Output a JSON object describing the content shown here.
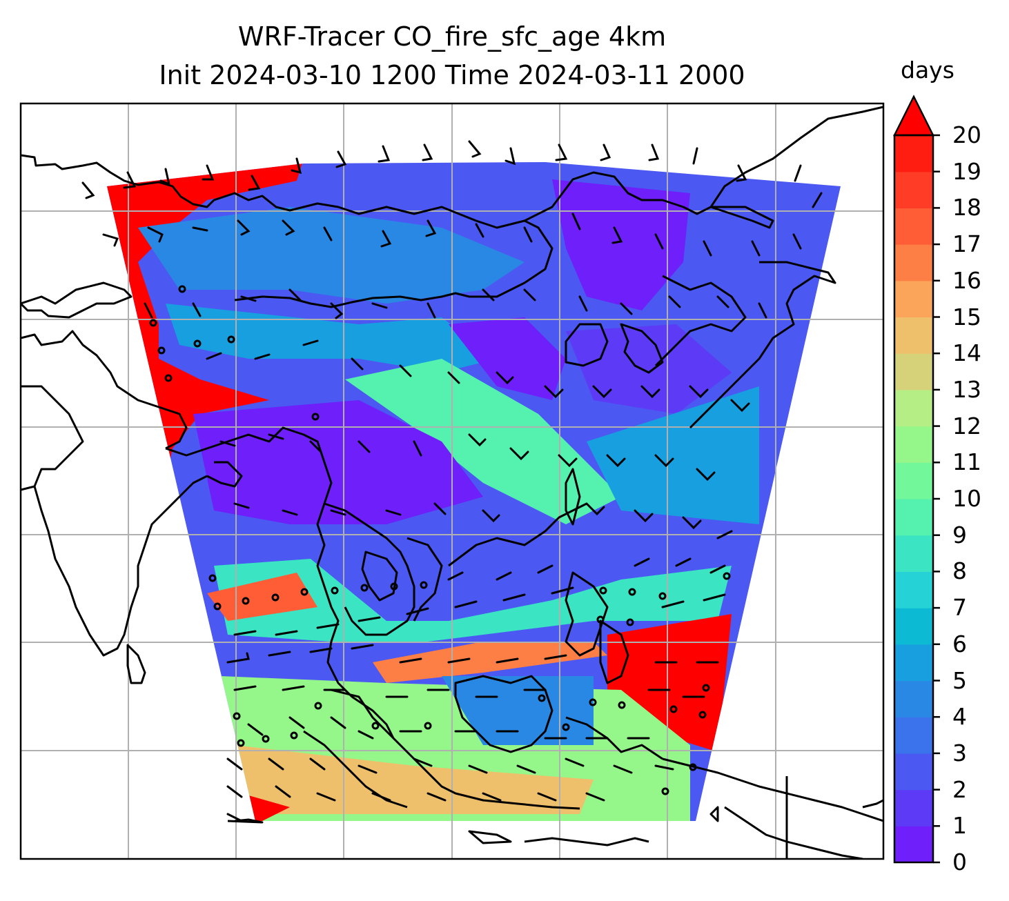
{
  "title": {
    "line1": "WRF-Tracer CO_fire_sfc_age 4km",
    "line2": "Init 2024-03-10 1200 Time 2024-03-11 2000"
  },
  "colorbar": {
    "label": "days",
    "min": 0,
    "max": 20,
    "extend": "max",
    "ticks": [
      "0",
      "1",
      "2",
      "3",
      "4",
      "5",
      "6",
      "7",
      "8",
      "9",
      "10",
      "11",
      "12",
      "13",
      "14",
      "15",
      "16",
      "17",
      "18",
      "19",
      "20"
    ],
    "colors": [
      "#6e1ffa",
      "#5d3af5",
      "#4b58f1",
      "#3a73ec",
      "#2a88e5",
      "#189fdf",
      "#0dbad4",
      "#25d3d6",
      "#3be4c2",
      "#55f1ae",
      "#73f79b",
      "#95f78a",
      "#b5ee85",
      "#d6d27a",
      "#efc06b",
      "#fba55a",
      "#fd7f45",
      "#ff5d35",
      "#ff3c25",
      "#ff1d12"
    ],
    "extend_color": "#ff0000"
  },
  "map": {
    "variable": "CO_fire_sfc_age",
    "units": "days",
    "gridlines": true,
    "overlays": [
      "coastlines",
      "wind-barbs",
      "lat-lon-grid"
    ]
  }
}
